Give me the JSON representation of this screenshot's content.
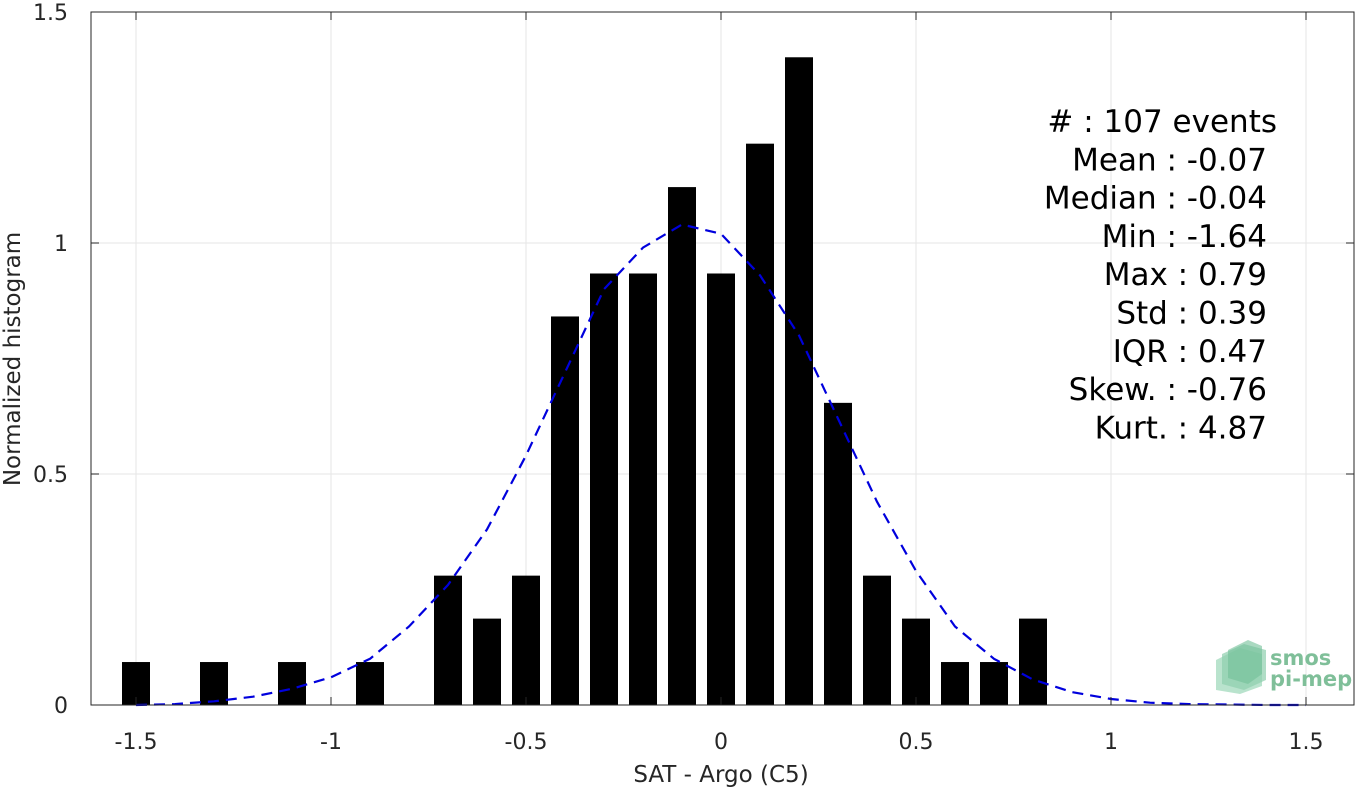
{
  "chart_data": {
    "type": "bar",
    "xlabel": "SAT - Argo (C5)",
    "ylabel": "Normalized histogram",
    "xlim": [
      -1.5,
      1.5
    ],
    "ylim": [
      0,
      1.5
    ],
    "xticks": [
      -1.5,
      -1,
      -0.5,
      0,
      0.5,
      1,
      1.5
    ],
    "xtick_labels": [
      "-1.5",
      "-1",
      "-0.5",
      "0",
      "0.5",
      "1",
      "1.5"
    ],
    "yticks": [
      0,
      0.5,
      1,
      1.5
    ],
    "ytick_labels": [
      "0",
      "0.5",
      "1",
      "1.5"
    ],
    "grid": true,
    "bar_color": "#000000",
    "bins": [
      {
        "x": -1.5,
        "value": 0.093
      },
      {
        "x": -1.3,
        "value": 0.093
      },
      {
        "x": -1.1,
        "value": 0.093
      },
      {
        "x": -0.9,
        "value": 0.093
      },
      {
        "x": -0.7,
        "value": 0.28
      },
      {
        "x": -0.6,
        "value": 0.187
      },
      {
        "x": -0.5,
        "value": 0.28
      },
      {
        "x": -0.4,
        "value": 0.841
      },
      {
        "x": -0.3,
        "value": 0.934
      },
      {
        "x": -0.2,
        "value": 0.934
      },
      {
        "x": -0.1,
        "value": 1.121
      },
      {
        "x": 0.0,
        "value": 0.934
      },
      {
        "x": 0.1,
        "value": 1.215
      },
      {
        "x": 0.2,
        "value": 1.402
      },
      {
        "x": 0.3,
        "value": 0.654
      },
      {
        "x": 0.4,
        "value": 0.28
      },
      {
        "x": 0.5,
        "value": 0.187
      },
      {
        "x": 0.6,
        "value": 0.093
      },
      {
        "x": 0.7,
        "value": 0.093
      },
      {
        "x": 0.8,
        "value": 0.187
      }
    ],
    "fit_curve": {
      "style": "dashed",
      "color": "#0000dd",
      "x": [
        -1.5,
        -1.4,
        -1.3,
        -1.2,
        -1.1,
        -1.0,
        -0.9,
        -0.8,
        -0.7,
        -0.6,
        -0.5,
        -0.4,
        -0.3,
        -0.2,
        -0.1,
        0.0,
        0.1,
        0.2,
        0.3,
        0.4,
        0.5,
        0.6,
        0.7,
        0.8,
        0.9,
        1.0,
        1.1,
        1.2,
        1.3,
        1.4,
        1.5
      ],
      "y": [
        0.0,
        0.002,
        0.008,
        0.018,
        0.035,
        0.06,
        0.1,
        0.17,
        0.26,
        0.38,
        0.54,
        0.72,
        0.9,
        0.99,
        1.04,
        1.02,
        0.93,
        0.8,
        0.62,
        0.44,
        0.29,
        0.17,
        0.1,
        0.055,
        0.028,
        0.013,
        0.005,
        0.002,
        0.001,
        0.0,
        0.0
      ]
    },
    "stats": [
      "#  : 107 events",
      "Mean : -0.07",
      "Median : -0.04",
      "Min : -1.64",
      "Max : 0.79",
      "Std : 0.39",
      "IQR : 0.47",
      "Skew. : -0.76",
      "Kurt. : 4.87"
    ]
  },
  "logo": {
    "line1": "smos",
    "line2": "pi-mep"
  }
}
